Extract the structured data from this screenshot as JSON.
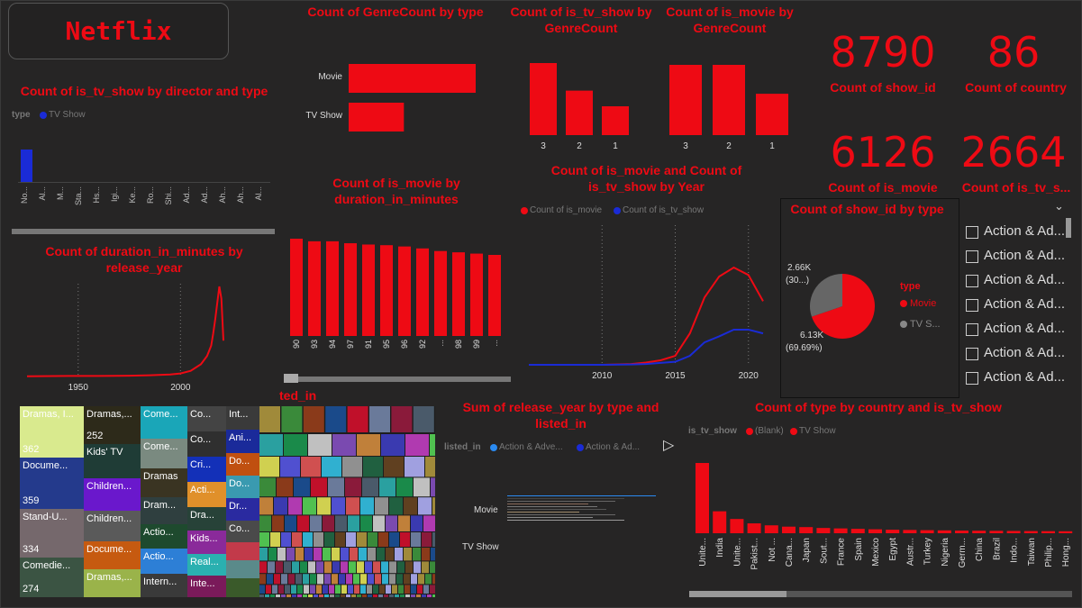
{
  "logo": "Netflix",
  "kpis": [
    {
      "value": "8790",
      "label": "Count of show_id"
    },
    {
      "value": "86",
      "label": "Count of country"
    },
    {
      "value": "6126",
      "label": "Count of is_movie"
    },
    {
      "value": "2664",
      "label": "Count of is_tv_s..."
    }
  ],
  "director": {
    "title": "Count of is_tv_show by director and type",
    "legend_title": "type",
    "legend_item": "TV Show",
    "legend_color": "#1a2bd6"
  },
  "genre_type": {
    "title": "Count of GenreCount by type",
    "chart_data": {
      "type": "bar",
      "orientation": "horizontal",
      "categories": [
        "Movie",
        "TV Show"
      ],
      "values": [
        6126,
        2664
      ]
    }
  },
  "tv_genre": {
    "title": "Count of is_tv_show by GenreCount",
    "chart_data": {
      "type": "bar",
      "categories": [
        "3",
        "2",
        "1"
      ],
      "values": [
        1150,
        710,
        460
      ]
    }
  },
  "movie_genre": {
    "title": "Count of is_movie by GenreCount",
    "chart_data": {
      "type": "bar",
      "categories": [
        "3",
        "2",
        "1"
      ],
      "values": [
        2600,
        2600,
        1530
      ]
    }
  },
  "duration_movie": {
    "title": "Count of is_movie by duration_in_minutes",
    "chart_data": {
      "type": "bar",
      "categories": [
        "90",
        "93",
        "94",
        "97",
        "91",
        "95",
        "96",
        "92",
        "...",
        "98",
        "99",
        "..."
      ],
      "values": [
        150,
        146,
        146,
        143,
        141,
        140,
        138,
        135,
        131,
        129,
        127,
        125
      ]
    }
  },
  "duration_year": {
    "title": "Count of duration_in_minutes by release_year",
    "x_ticks": [
      "1950",
      "2000"
    ],
    "chart_data": {
      "type": "line",
      "x": [
        1925,
        1945,
        1960,
        1975,
        1985,
        1995,
        2000,
        2005,
        2010,
        2013,
        2015,
        2016,
        2017,
        2018,
        2019,
        2020,
        2021
      ],
      "y": [
        2,
        5,
        6,
        8,
        12,
        20,
        30,
        55,
        120,
        200,
        300,
        420,
        560,
        720,
        880,
        760,
        350
      ]
    }
  },
  "movie_tv_year": {
    "title": "Count of is_movie and Count of is_tv_show by Year",
    "legend": [
      "Count of is_movie",
      "Count of is_tv_show"
    ],
    "x_ticks": [
      "2010",
      "2015",
      "2020"
    ],
    "chart_data": {
      "type": "line",
      "x": [
        2005,
        2008,
        2010,
        2012,
        2013,
        2014,
        2015,
        2016,
        2017,
        2018,
        2019,
        2020,
        2021
      ],
      "series": [
        {
          "name": "Count of is_movie",
          "color": "#ee0a14",
          "values": [
            0,
            0,
            0,
            10,
            30,
            60,
            120,
            420,
            900,
            1180,
            1300,
            1200,
            850
          ]
        },
        {
          "name": "Count of is_tv_show",
          "color": "#1a2bd6",
          "values": [
            0,
            0,
            0,
            5,
            10,
            25,
            40,
            120,
            300,
            380,
            470,
            470,
            420
          ]
        }
      ]
    }
  },
  "pie": {
    "title": "Count of show_id by type",
    "legend_title": "type",
    "legend_items": [
      "Movie",
      "TV S..."
    ],
    "label_tv": [
      "2.66K",
      "(30...)"
    ],
    "label_movie": [
      "6.13K",
      "(69.69%)"
    ],
    "chart_data": {
      "type": "pie",
      "categories": [
        "Movie",
        "TV Show"
      ],
      "values": [
        6130,
        2660
      ],
      "colors": [
        "#ee0a14",
        "#666666"
      ]
    }
  },
  "slicer": {
    "items": [
      "Action & Ad...",
      "Action & Ad...",
      "Action & Ad...",
      "Action & Ad...",
      "Action & Ad...",
      "Action & Ad...",
      "Action & Ad..."
    ]
  },
  "treemap": {
    "title": "ted_in",
    "tiles": [
      {
        "label": "Dramas, I...",
        "value": "362",
        "color": "#d9ea8e",
        "dark": true
      },
      {
        "label": "Docume...",
        "value": "359",
        "color": "#243a8c"
      },
      {
        "label": "Stand-U...",
        "value": "334",
        "color": "#75686c"
      },
      {
        "label": "Comedie...",
        "value": "274",
        "color": "#3b5443"
      },
      {
        "label": "Dramas,...",
        "value": "252",
        "color": "#2d2a1a"
      },
      {
        "label": "Kids' TV",
        "color": "#1f3c36"
      },
      {
        "label": "Children...",
        "color": "#6a18cc"
      },
      {
        "label": "Children...",
        "color": "#5a5a5a"
      },
      {
        "label": "Docume...",
        "color": "#c65a10"
      },
      {
        "label": "Dramas,...",
        "color": "#9ab34a"
      },
      {
        "label": "Come...",
        "color": "#1aa6b8"
      },
      {
        "label": "Come...",
        "color": "#7a8a80"
      },
      {
        "label": "Dramas",
        "color": "#3a3422"
      },
      {
        "label": "Dram...",
        "color": "#2f3f3f"
      },
      {
        "label": "Actio...",
        "color": "#1e4a2e"
      },
      {
        "label": "Actio...",
        "color": "#2d7fd6"
      },
      {
        "label": "Intern...",
        "color": "#3a3a3a"
      },
      {
        "label": "Co...",
        "color": "#444"
      },
      {
        "label": "Co...",
        "color": "#2f2f2f"
      },
      {
        "label": "Cri...",
        "color": "#1330b8"
      },
      {
        "label": "Acti...",
        "color": "#e0902a"
      },
      {
        "label": "Dra...",
        "color": "#274238"
      },
      {
        "label": "Kids...",
        "color": "#8a2a9a"
      },
      {
        "label": "Real...",
        "color": "#2ab0b0"
      },
      {
        "label": "Inte...",
        "color": "#7a1a5a"
      },
      {
        "label": "Int...",
        "color": "#3a3a3a"
      },
      {
        "label": "Ani...",
        "color": "#1a2a9a"
      },
      {
        "label": "Do...",
        "color": "#c05010"
      },
      {
        "label": "Do...",
        "color": "#3a9ab0"
      },
      {
        "label": "Dr...",
        "color": "#2a2aa0"
      },
      {
        "label": "Co...",
        "color": "#4a4a4a"
      }
    ]
  },
  "release_sum": {
    "title": "Sum of release_year by type and listed_in",
    "legend_title": "listed_in",
    "legend": [
      "Action & Adve...",
      "Action & Ad..."
    ],
    "legend_colors": [
      "#2a8af0",
      "#1a2bd6"
    ],
    "rows": [
      "Movie",
      "TV Show"
    ]
  },
  "country_chart": {
    "title": "Count of type by country and is_tv_show",
    "legend_title": "is_tv_show",
    "legend": [
      "(Blank)",
      "TV Show"
    ],
    "chart_data": {
      "type": "bar",
      "categories": [
        "Unite...",
        "India",
        "Unite...",
        "Pakist...",
        "Not ...",
        "Cana...",
        "Japan",
        "Sout...",
        "France",
        "Spain",
        "Mexico",
        "Egypt",
        "Austr...",
        "Turkey",
        "Nigeria",
        "Germ...",
        "China",
        "Brazil",
        "Indo...",
        "Taiwan",
        "Philip...",
        "Hong..."
      ],
      "values": [
        3200,
        1000,
        650,
        450,
        360,
        300,
        280,
        240,
        220,
        200,
        180,
        160,
        150,
        140,
        130,
        120,
        115,
        110,
        105,
        100,
        95,
        90
      ]
    }
  }
}
